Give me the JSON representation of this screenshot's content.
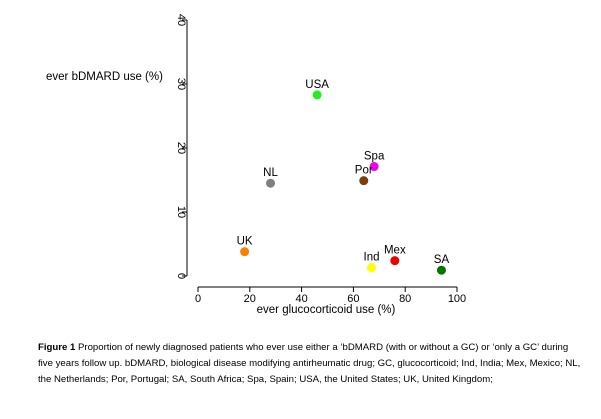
{
  "chart_data": {
    "type": "scatter",
    "title": "",
    "xlabel": "ever glucocorticoid use (%)",
    "ylabel": "ever bDMARD use (%)",
    "xlim": [
      0,
      100
    ],
    "ylim": [
      0,
      40
    ],
    "x_ticks": [
      "0",
      "20",
      "40",
      "60",
      "80",
      "100"
    ],
    "y_ticks": [
      "0",
      "10",
      "20",
      "30",
      "40"
    ],
    "grid": false,
    "points": [
      {
        "label": "USA",
        "x": 46,
        "y": 28.3,
        "color": "#22ee22"
      },
      {
        "label": "Spa",
        "x": 68,
        "y": 17.1,
        "color": "#ee00ee"
      },
      {
        "label": "Por",
        "x": 64,
        "y": 14.9,
        "color": "#7a3e10"
      },
      {
        "label": "NL",
        "x": 28,
        "y": 14.5,
        "color": "#808080"
      },
      {
        "label": "UK",
        "x": 18,
        "y": 3.8,
        "color": "#ff8000"
      },
      {
        "label": "Ind",
        "x": 67,
        "y": 1.3,
        "color": "#ffff00"
      },
      {
        "label": "Mex",
        "x": 76,
        "y": 2.4,
        "color": "#ee0000"
      },
      {
        "label": "SA",
        "x": 94,
        "y": 0.9,
        "color": "#007700"
      }
    ]
  },
  "caption": {
    "label": "Figure 1",
    "text": " Proportion of newly diagnosed patients who ever use either a ‘bDMARD (with or without a GC) or ‘only a GC’  during five years follow up. bDMARD, biological disease modifying antirheumatic drug; GC, glucocorticoid; Ind, India; Mex, Mexico; NL, the Netherlands; Por, Portugal; SA, South Africa; Spa, Spain; USA, the United States; UK, United Kingdom;"
  }
}
